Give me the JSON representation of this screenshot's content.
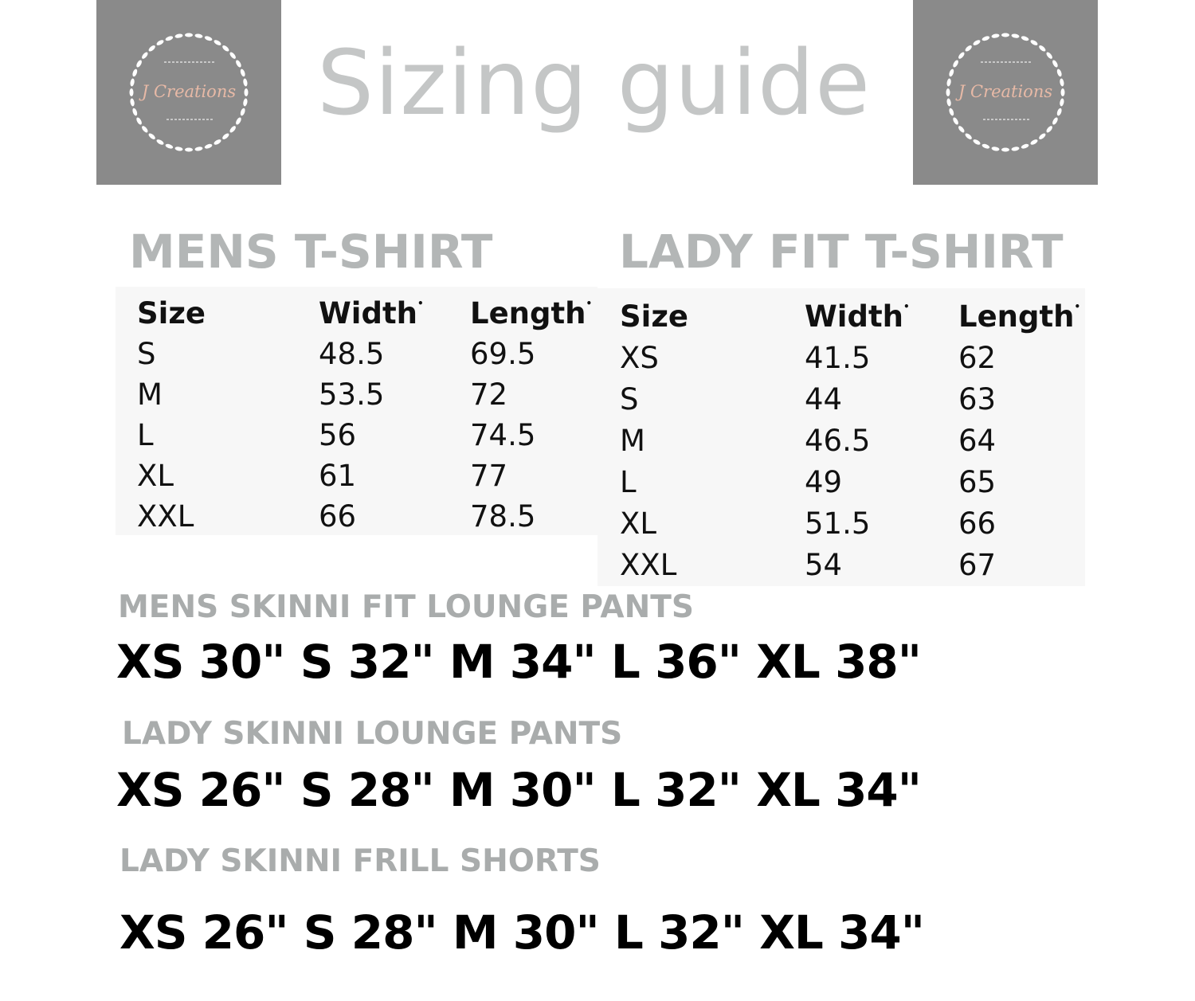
{
  "title": "Sizing guide",
  "logo": {
    "text": "J Creations",
    "icon": "wreath-logo"
  },
  "mens_tshirt": {
    "title": "MENS T-SHIRT",
    "headers": [
      "Size",
      "Width",
      "Length"
    ],
    "rows": [
      [
        "S",
        "48.5",
        "69.5"
      ],
      [
        "M",
        "53.5",
        "72"
      ],
      [
        "L",
        "56",
        "74.5"
      ],
      [
        "XL",
        "61",
        "77"
      ],
      [
        "XXL",
        "66",
        "78.5"
      ]
    ]
  },
  "lady_tshirt": {
    "title": "LADY FIT T-SHIRT",
    "headers": [
      "Size",
      "Width",
      "Length"
    ],
    "rows": [
      [
        "XS",
        "41.5",
        "62"
      ],
      [
        "S",
        "44",
        "63"
      ],
      [
        "M",
        "46.5",
        "64"
      ],
      [
        "L",
        "49",
        "65"
      ],
      [
        "XL",
        "51.5",
        "66"
      ],
      [
        "XXL",
        "54",
        "67"
      ]
    ]
  },
  "pants": [
    {
      "title": "MENS SKINNI FIT  LOUNGE PANTS",
      "sizes": "XS 30\" S 32\" M 34\" L 36\" XL 38\""
    },
    {
      "title": "LADY SKINNI LOUNGE PANTS",
      "sizes": "XS 26\" S 28\" M 30\" L 32\" XL 34\""
    },
    {
      "title": "LADY SKINNI FRILL SHORTS",
      "sizes": "XS 26\" S 28\" M 30\" L 32\" XL 34\""
    }
  ]
}
